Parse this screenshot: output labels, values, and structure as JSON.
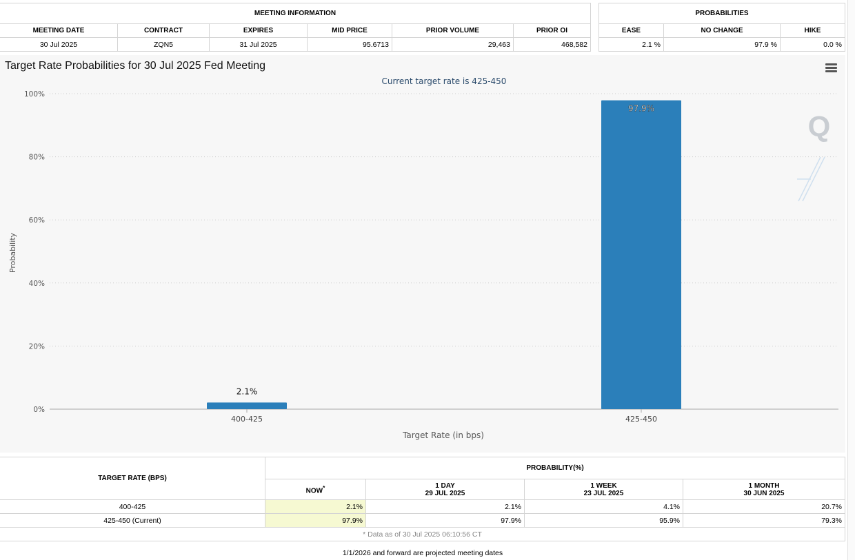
{
  "meeting_info": {
    "group_title": "MEETING INFORMATION",
    "headers": [
      "MEETING DATE",
      "CONTRACT",
      "EXPIRES",
      "MID PRICE",
      "PRIOR VOLUME",
      "PRIOR OI"
    ],
    "row": {
      "meeting_date": "30 Jul 2025",
      "contract": "ZQN5",
      "expires": "31 Jul 2025",
      "mid_price": "95.6713",
      "prior_volume": "29,463",
      "prior_oi": "468,582"
    }
  },
  "probabilities": {
    "group_title": "PROBABILITIES",
    "headers": [
      "EASE",
      "NO CHANGE",
      "HIKE"
    ],
    "row": {
      "ease": "2.1 %",
      "no_change": "97.9 %",
      "hike": "0.0 %"
    }
  },
  "chart_data": {
    "type": "bar",
    "title": "Target Rate Probabilities for 30 Jul 2025 Fed Meeting",
    "subtitle": "Current target rate is 425-450",
    "categories": [
      "400-425",
      "425-450"
    ],
    "values": [
      2.1,
      97.9
    ],
    "data_labels": [
      "2.1%",
      "97.9%"
    ],
    "xlabel": "Target Rate (in bps)",
    "ylabel": "Probability",
    "ylim": [
      0,
      100
    ],
    "yticks": [
      0,
      20,
      40,
      60,
      80,
      100
    ],
    "ytick_labels": [
      "0%",
      "20%",
      "40%",
      "60%",
      "80%",
      "100%"
    ],
    "bar_color": "#2b7fba",
    "grid": true,
    "watermark": "Q"
  },
  "bottom": {
    "target_rate_header": "TARGET RATE (BPS)",
    "probability_header": "PROBABILITY(%)",
    "now_label": "NOW",
    "now_marker": "*",
    "col_1day": {
      "label": "1 DAY",
      "date": "29 JUL 2025"
    },
    "col_1week": {
      "label": "1 WEEK",
      "date": "23 JUL 2025"
    },
    "col_1month": {
      "label": "1 MONTH",
      "date": "30 JUN 2025"
    },
    "rows": [
      {
        "rate": "400-425",
        "now": "2.1%",
        "day1": "2.1%",
        "week1": "4.1%",
        "month1": "20.7%"
      },
      {
        "rate": "425-450 (Current)",
        "now": "97.9%",
        "day1": "97.9%",
        "week1": "95.9%",
        "month1": "79.3%"
      }
    ],
    "data_note": "* Data as of 30 Jul 2025 06:10:56 CT",
    "forward_note": "1/1/2026 and forward are projected meeting dates"
  }
}
